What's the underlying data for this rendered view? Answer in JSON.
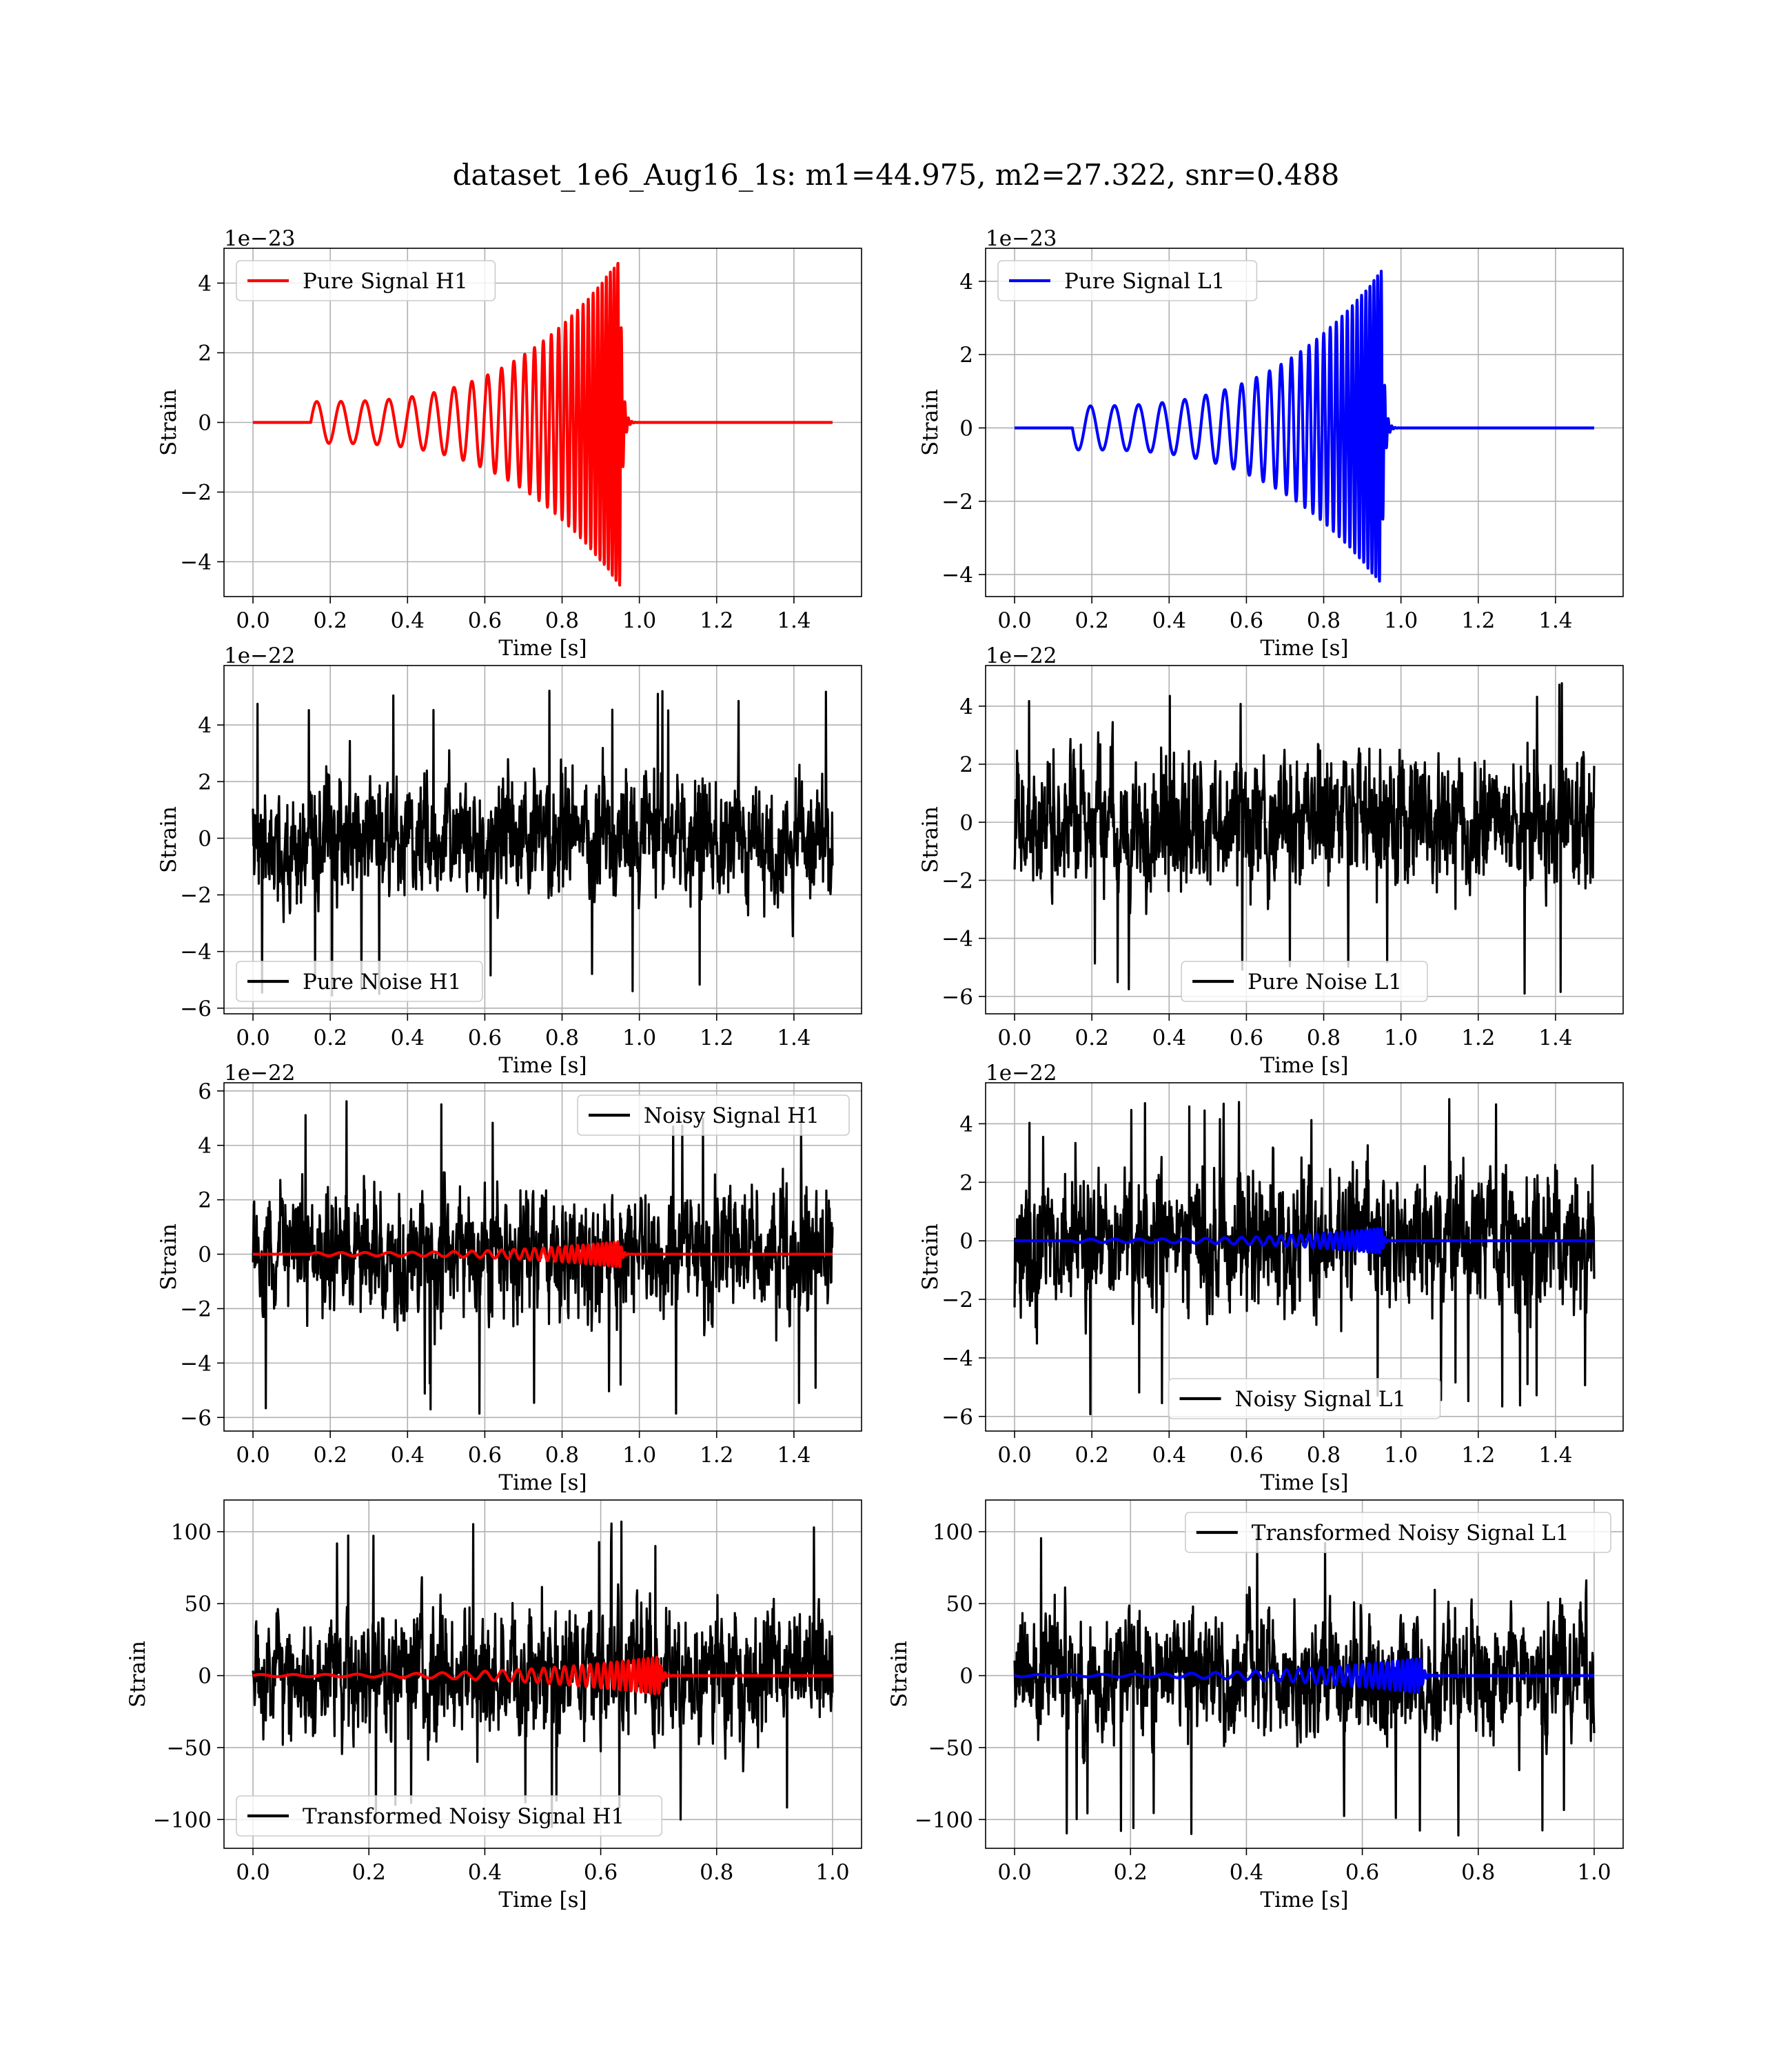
{
  "figure": {
    "suptitle": "dataset_1e6_Aug16_1s: m1=44.975, m2=27.322, snr=0.488"
  },
  "chart_data": [
    {
      "type": "line",
      "id": "p1",
      "xlabel": "Time [s]",
      "ylabel": "Strain",
      "offset": "1e−23",
      "xlim": [
        -0.075,
        1.575
      ],
      "ylim": [
        -5.0,
        5.0
      ],
      "xticks": [
        0.0,
        0.2,
        0.4,
        0.6,
        0.8,
        1.0,
        1.2,
        1.4
      ],
      "xtick_labels": [
        "0.0",
        "0.2",
        "0.4",
        "0.6",
        "0.8",
        "1.0",
        "1.2",
        "1.4"
      ],
      "yticks": [
        -4,
        -2,
        0,
        2,
        4
      ],
      "ytick_labels": [
        "−4",
        "−2",
        "0",
        "2",
        "4"
      ],
      "grid": true,
      "legend_position": "upper-left",
      "series": [
        {
          "name": "Pure Signal H1",
          "color": "#ff0000",
          "kind": "chirp",
          "x_start": 0.0,
          "x_end": 1.5,
          "chirp_start": 0.15,
          "merger": 0.95,
          "amp_start": 0.6,
          "amp_peak": 4.7,
          "f_start": 16,
          "f_end": 110,
          "sign": 1
        }
      ]
    },
    {
      "type": "line",
      "id": "p2",
      "xlabel": "Time [s]",
      "ylabel": "Strain",
      "offset": "1e−23",
      "xlim": [
        -0.075,
        1.575
      ],
      "ylim": [
        -4.6,
        4.9
      ],
      "xticks": [
        0.0,
        0.2,
        0.4,
        0.6,
        0.8,
        1.0,
        1.2,
        1.4
      ],
      "xtick_labels": [
        "0.0",
        "0.2",
        "0.4",
        "0.6",
        "0.8",
        "1.0",
        "1.2",
        "1.4"
      ],
      "yticks": [
        -4,
        -2,
        0,
        2,
        4
      ],
      "ytick_labels": [
        "−4",
        "−2",
        "0",
        "2",
        "4"
      ],
      "grid": true,
      "legend_position": "upper-left",
      "series": [
        {
          "name": "Pure Signal L1",
          "color": "#0000ff",
          "kind": "chirp",
          "x_start": 0.0,
          "x_end": 1.5,
          "chirp_start": 0.15,
          "merger": 0.95,
          "amp_start": 0.6,
          "amp_peak": 4.3,
          "f_start": 16,
          "f_end": 110,
          "sign": -1
        }
      ]
    },
    {
      "type": "line",
      "id": "p3",
      "xlabel": "Time [s]",
      "ylabel": "Strain",
      "offset": "1e−22",
      "xlim": [
        -0.075,
        1.575
      ],
      "ylim": [
        -6.2,
        6.1
      ],
      "xticks": [
        0.0,
        0.2,
        0.4,
        0.6,
        0.8,
        1.0,
        1.2,
        1.4
      ],
      "xtick_labels": [
        "0.0",
        "0.2",
        "0.4",
        "0.6",
        "0.8",
        "1.0",
        "1.2",
        "1.4"
      ],
      "yticks": [
        -6,
        -4,
        -2,
        0,
        2,
        4
      ],
      "ytick_labels": [
        "−6",
        "−4",
        "−2",
        "0",
        "2",
        "4"
      ],
      "grid": true,
      "legend_position": "lower-left",
      "series": [
        {
          "name": "Pure Noise H1",
          "color": "#000000",
          "kind": "noise",
          "x_start": 0.0,
          "x_end": 1.5,
          "amp_max": 5.4,
          "amp_min": -5.6,
          "seed": 11
        }
      ]
    },
    {
      "type": "line",
      "id": "p4",
      "xlabel": "Time [s]",
      "ylabel": "Strain",
      "offset": "1e−22",
      "xlim": [
        -0.075,
        1.575
      ],
      "ylim": [
        -6.6,
        5.4
      ],
      "xticks": [
        0.0,
        0.2,
        0.4,
        0.6,
        0.8,
        1.0,
        1.2,
        1.4
      ],
      "xtick_labels": [
        "0.0",
        "0.2",
        "0.4",
        "0.6",
        "0.8",
        "1.0",
        "1.2",
        "1.4"
      ],
      "yticks": [
        -6,
        -4,
        -2,
        0,
        2,
        4
      ],
      "ytick_labels": [
        "−6",
        "−4",
        "−2",
        "0",
        "2",
        "4"
      ],
      "grid": true,
      "legend_position": "lower-center",
      "series": [
        {
          "name": "Pure Noise L1",
          "color": "#000000",
          "kind": "noise",
          "x_start": 0.0,
          "x_end": 1.5,
          "amp_max": 4.9,
          "amp_min": -6.0,
          "seed": 23
        }
      ]
    },
    {
      "type": "line",
      "id": "p5",
      "xlabel": "Time [s]",
      "ylabel": "Strain",
      "offset": "1e−22",
      "xlim": [
        -0.075,
        1.575
      ],
      "ylim": [
        -6.5,
        6.3
      ],
      "xticks": [
        0.0,
        0.2,
        0.4,
        0.6,
        0.8,
        1.0,
        1.2,
        1.4
      ],
      "xtick_labels": [
        "0.0",
        "0.2",
        "0.4",
        "0.6",
        "0.8",
        "1.0",
        "1.2",
        "1.4"
      ],
      "yticks": [
        -6,
        -4,
        -2,
        0,
        2,
        4,
        6
      ],
      "ytick_labels": [
        "−6",
        "−4",
        "−2",
        "0",
        "2",
        "4",
        "6"
      ],
      "grid": true,
      "legend_position": "upper-right",
      "series": [
        {
          "name": "Noisy Signal H1",
          "color": "#000000",
          "kind": "noise",
          "x_start": 0.0,
          "x_end": 1.5,
          "amp_max": 5.7,
          "amp_min": -5.9,
          "seed": 37
        },
        {
          "name": "",
          "color": "#ff0000",
          "kind": "chirp",
          "x_start": 0.0,
          "x_end": 1.5,
          "chirp_start": 0.15,
          "merger": 0.95,
          "amp_start": 0.06,
          "amp_peak": 0.47,
          "f_start": 16,
          "f_end": 110,
          "sign": 1
        }
      ]
    },
    {
      "type": "line",
      "id": "p6",
      "xlabel": "Time [s]",
      "ylabel": "Strain",
      "offset": "1e−22",
      "xlim": [
        -0.075,
        1.575
      ],
      "ylim": [
        -6.5,
        5.4
      ],
      "xticks": [
        0.0,
        0.2,
        0.4,
        0.6,
        0.8,
        1.0,
        1.2,
        1.4
      ],
      "xtick_labels": [
        "0.0",
        "0.2",
        "0.4",
        "0.6",
        "0.8",
        "1.0",
        "1.2",
        "1.4"
      ],
      "yticks": [
        -6,
        -4,
        -2,
        0,
        2,
        4
      ],
      "ytick_labels": [
        "−6",
        "−4",
        "−2",
        "0",
        "2",
        "4"
      ],
      "grid": true,
      "legend_position": "lower-center",
      "series": [
        {
          "name": "Noisy Signal L1",
          "color": "#000000",
          "kind": "noise",
          "x_start": 0.0,
          "x_end": 1.5,
          "amp_max": 4.9,
          "amp_min": -6.0,
          "seed": 51
        },
        {
          "name": "",
          "color": "#0000ff",
          "kind": "chirp",
          "x_start": 0.0,
          "x_end": 1.5,
          "chirp_start": 0.15,
          "merger": 0.95,
          "amp_start": 0.06,
          "amp_peak": 0.43,
          "f_start": 16,
          "f_end": 110,
          "sign": -1
        }
      ]
    },
    {
      "type": "line",
      "id": "p7",
      "xlabel": "Time [s]",
      "ylabel": "Strain",
      "offset": "",
      "xlim": [
        -0.05,
        1.05
      ],
      "ylim": [
        -120,
        122
      ],
      "xticks": [
        0.0,
        0.2,
        0.4,
        0.6,
        0.8,
        1.0
      ],
      "xtick_labels": [
        "0.0",
        "0.2",
        "0.4",
        "0.6",
        "0.8",
        "1.0"
      ],
      "yticks": [
        -100,
        -50,
        0,
        50,
        100
      ],
      "ytick_labels": [
        "−100",
        "−50",
        "0",
        "50",
        "100"
      ],
      "grid": true,
      "legend_position": "lower-left",
      "series": [
        {
          "name": "Transformed Noisy Signal H1",
          "color": "#000000",
          "kind": "noise",
          "x_start": 0.0,
          "x_end": 1.0,
          "amp_max": 112,
          "amp_min": -108,
          "seed": 67
        },
        {
          "name": "",
          "color": "#ff0000",
          "kind": "chirp",
          "x_start": 0.0,
          "x_end": 1.0,
          "chirp_start": 0.0,
          "merger": 0.7,
          "amp_start": 0.8,
          "amp_peak": 13,
          "f_start": 18,
          "f_end": 140,
          "sign": 1
        }
      ]
    },
    {
      "type": "line",
      "id": "p8",
      "xlabel": "Time [s]",
      "ylabel": "Strain",
      "offset": "",
      "xlim": [
        -0.05,
        1.05
      ],
      "ylim": [
        -120,
        122
      ],
      "xticks": [
        0.0,
        0.2,
        0.4,
        0.6,
        0.8,
        1.0
      ],
      "xtick_labels": [
        "0.0",
        "0.2",
        "0.4",
        "0.6",
        "0.8",
        "1.0"
      ],
      "yticks": [
        -100,
        -50,
        0,
        50,
        100
      ],
      "ytick_labels": [
        "−100",
        "−50",
        "0",
        "50",
        "100"
      ],
      "grid": true,
      "legend_position": "upper-right",
      "series": [
        {
          "name": "Transformed Noisy Signal L1",
          "color": "#000000",
          "kind": "noise",
          "x_start": 0.0,
          "x_end": 1.0,
          "amp_max": 110,
          "amp_min": -112,
          "seed": 83
        },
        {
          "name": "",
          "color": "#0000ff",
          "kind": "chirp",
          "x_start": 0.0,
          "x_end": 1.0,
          "chirp_start": 0.0,
          "merger": 0.7,
          "amp_start": 0.8,
          "amp_peak": 12,
          "f_start": 18,
          "f_end": 140,
          "sign": -1
        }
      ]
    }
  ]
}
